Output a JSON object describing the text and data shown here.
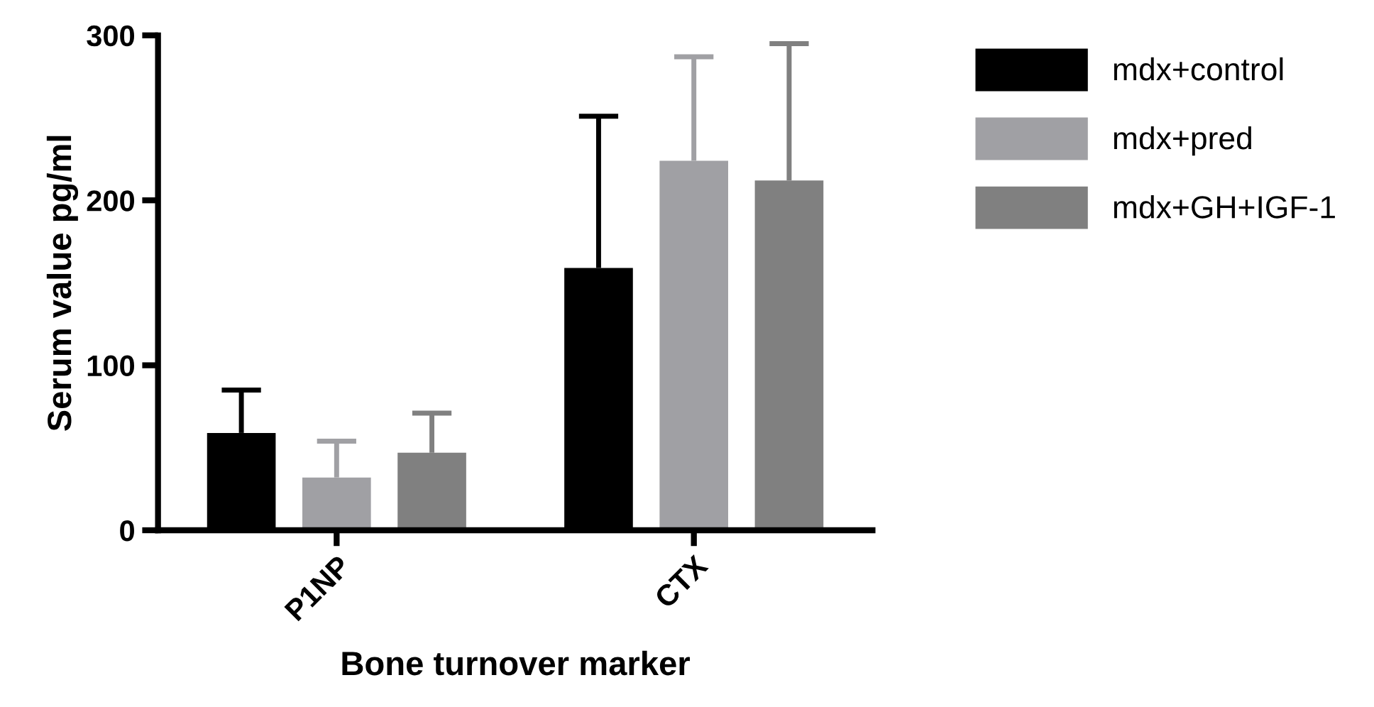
{
  "chart_data": {
    "type": "bar",
    "xlabel": "Bone turnover marker",
    "ylabel": "Serum value pg/ml",
    "categories": [
      "P1NP",
      "CTX"
    ],
    "series": [
      {
        "name": "mdx+control",
        "color": "#000000",
        "values": [
          59,
          159
        ],
        "errors": [
          [
            59,
            85
          ],
          [
            159,
            251
          ]
        ]
      },
      {
        "name": "mdx+pred",
        "color": "#a0a0a4",
        "values": [
          32,
          224
        ],
        "errors": [
          [
            32,
            54
          ],
          [
            224,
            287
          ]
        ]
      },
      {
        "name": "mdx+GH+IGF-1",
        "color": "#808080",
        "values": [
          47,
          212
        ],
        "errors": [
          [
            47,
            71
          ],
          [
            212,
            295
          ]
        ]
      }
    ],
    "ylim": [
      0,
      300
    ],
    "yticks": [
      0,
      100,
      200,
      300
    ],
    "grid": false,
    "legend": "top right"
  }
}
